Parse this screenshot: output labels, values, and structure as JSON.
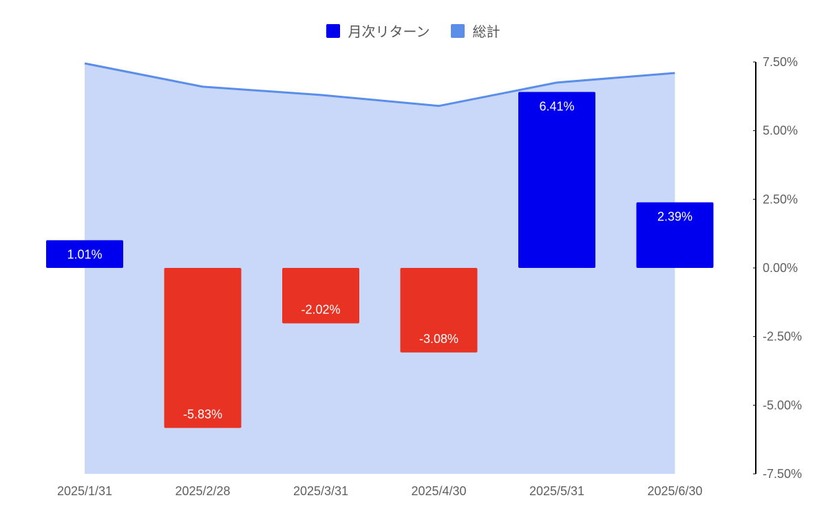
{
  "legend": {
    "monthly_label": "月次リターン",
    "total_label": "総計"
  },
  "colors": {
    "positive": "#0000ee",
    "negative": "#e83224",
    "area_fill": "#c9d8f8",
    "area_line": "#5a8ee9",
    "axis": "#000000"
  },
  "chart_data": {
    "type": "bar",
    "categories": [
      "2025/1/31",
      "2025/2/28",
      "2025/3/31",
      "2025/4/30",
      "2025/5/31",
      "2025/6/30"
    ],
    "series": [
      {
        "name": "月次リターン",
        "type": "bar",
        "values": [
          1.01,
          -5.83,
          -2.02,
          -3.08,
          6.41,
          2.39
        ],
        "labels": [
          "1.01%",
          "-5.83%",
          "-2.02%",
          "-3.08%",
          "6.41%",
          "2.39%"
        ]
      },
      {
        "name": "総計",
        "type": "area",
        "values": [
          7.45,
          6.6,
          6.3,
          5.9,
          6.75,
          7.1
        ]
      }
    ],
    "y_ticks": [
      7.5,
      5.0,
      2.5,
      0.0,
      -2.5,
      -5.0,
      -7.5
    ],
    "y_tick_labels": [
      "7.50%",
      "5.00%",
      "2.50%",
      "0.00%",
      "-2.50%",
      "-5.00%",
      "-7.50%"
    ],
    "ylim": [
      -7.5,
      7.5
    ],
    "legend_position": "top"
  }
}
